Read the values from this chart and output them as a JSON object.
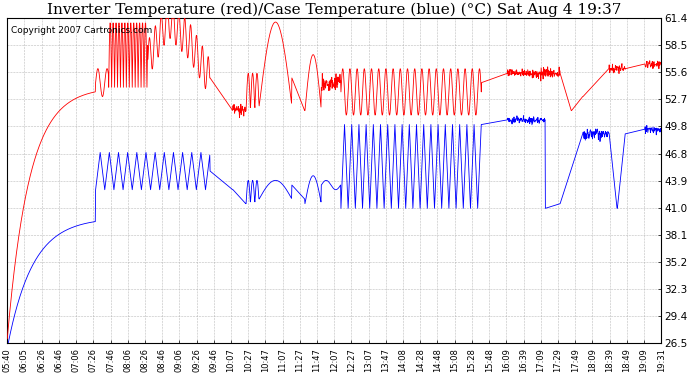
{
  "title": "Inverter Temperature (red)/Case Temperature (blue) (°C) Sat Aug 4 19:37",
  "copyright": "Copyright 2007 Cartronics.com",
  "yticks": [
    26.5,
    29.4,
    32.3,
    35.2,
    38.1,
    41.0,
    43.9,
    46.8,
    49.8,
    52.7,
    55.6,
    58.5,
    61.4
  ],
  "ylim": [
    26.5,
    61.4
  ],
  "xtick_labels": [
    "05:40",
    "06:05",
    "06:26",
    "06:46",
    "07:06",
    "07:26",
    "07:46",
    "08:06",
    "08:26",
    "08:46",
    "09:06",
    "09:26",
    "09:46",
    "10:07",
    "10:27",
    "10:47",
    "11:07",
    "11:27",
    "11:47",
    "12:07",
    "12:27",
    "13:07",
    "13:47",
    "14:08",
    "14:28",
    "14:48",
    "15:08",
    "15:28",
    "15:48",
    "16:09",
    "16:39",
    "17:09",
    "17:29",
    "17:49",
    "18:09",
    "18:39",
    "18:49",
    "19:09",
    "19:31"
  ],
  "bg_color": "#ffffff",
  "grid_color": "#aaaaaa",
  "red_color": "#ff0000",
  "blue_color": "#0000ff",
  "title_fontsize": 11,
  "copyright_fontsize": 6.5,
  "figsize": [
    6.9,
    3.75
  ],
  "dpi": 100
}
